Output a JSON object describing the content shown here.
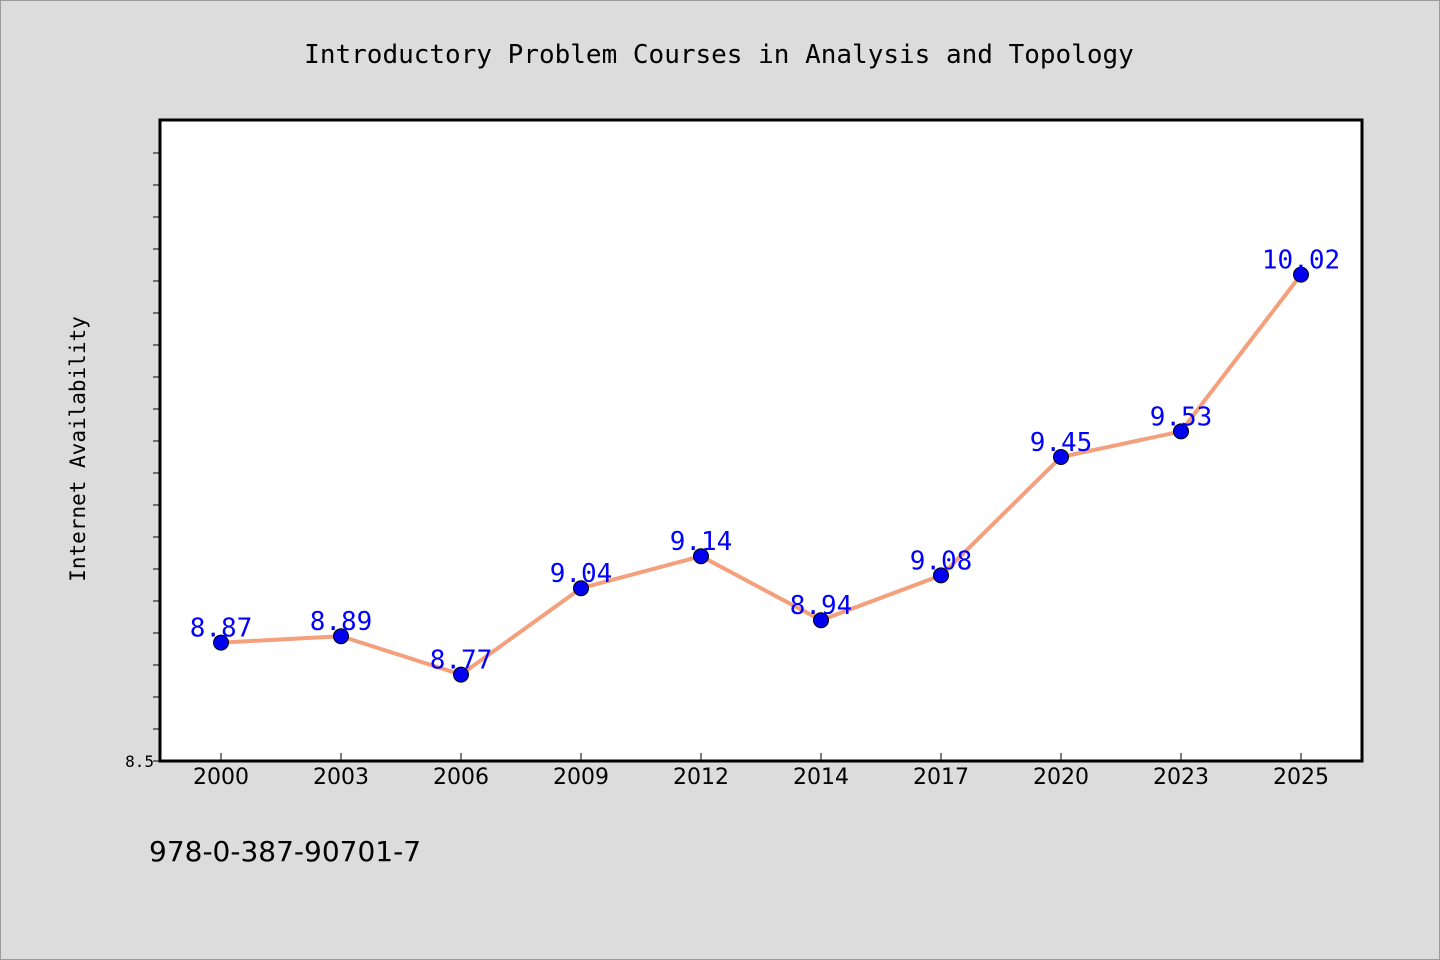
{
  "chart_data": {
    "type": "line",
    "title": "Introductory Problem Courses in Analysis and Topology",
    "xlabel": "",
    "ylabel": "Internet Availability",
    "categories": [
      "2000",
      "2003",
      "2006",
      "2009",
      "2012",
      "2014",
      "2017",
      "2020",
      "2023",
      "2025"
    ],
    "series": [
      {
        "values": [
          8.87,
          8.89,
          8.77,
          9.04,
          9.14,
          8.94,
          9.08,
          9.45,
          9.53,
          10.02
        ],
        "data_labels": [
          "8.87",
          "8.89",
          "8.77",
          "9.04",
          "9.14",
          "8.94",
          "9.08",
          "9.45",
          "9.53",
          "10.02"
        ]
      }
    ],
    "ylim": [
      8.5,
      10.5
    ],
    "y_tick_labels": [
      "8.5"
    ],
    "grid": false,
    "legend": "none",
    "colors": {
      "line": "#f4a07c",
      "marker": "#0000ee",
      "label": "#0000ff",
      "plot_background": "#ffffff",
      "page_background": "#dcdcdc"
    }
  },
  "footer": {
    "isbn": "978-0-387-90701-7"
  }
}
